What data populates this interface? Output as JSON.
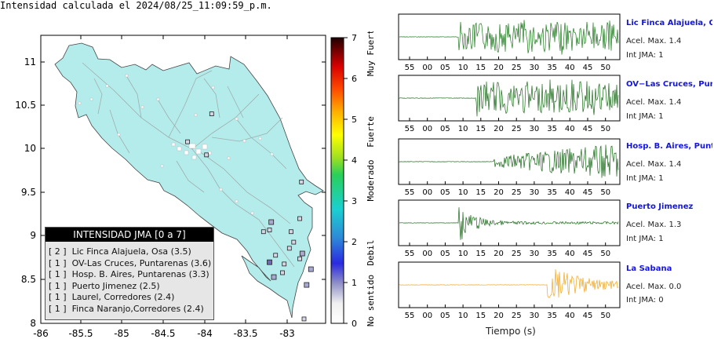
{
  "map": {
    "title": "Intensidad calculada el 2024/08/25_11:09:59_p.m.",
    "x_ticks": [
      "-86",
      "-85.5",
      "-85",
      "-84.5",
      "-84",
      "-83.5",
      "-83"
    ],
    "y_ticks": [
      "11",
      "10.5",
      "10",
      "9.5",
      "9",
      "8.5",
      "8"
    ],
    "land_color": "#b4ecec",
    "xlim": [
      -86,
      -82.7
    ],
    "ylim": [
      8,
      11.3
    ]
  },
  "colorbar": {
    "ticks": [
      "7",
      "6",
      "5",
      "4",
      "3",
      "2",
      "1",
      "0"
    ],
    "labels": [
      "Muy Fuerte",
      "Fuerte",
      "Moderado",
      "Debil",
      "No sentido"
    ]
  },
  "legend": {
    "header": "INTENSIDAD JMA [0 a 7]",
    "items": [
      "[ 2 ]  Lic Finca Alajuela, Osa (3.5)",
      "[ 1 ]  OV-Las Cruces, Puntarenas (3.6)",
      "[ 1 ]  Hosp. B. Aires, Puntarenas (3.3)",
      "[ 1 ]  Puerto Jimenez (2.5)",
      "[ 1 ]  Laurel, Corredores (2.4)",
      "[ 1 ]  Finca Naranjo,Corredores (2.4)"
    ]
  },
  "chart_data": [
    {
      "type": "scatter",
      "title": "Intensidad calculada el 2024/08/25_11:09:59_p.m.",
      "xlabel": "",
      "ylabel": "",
      "xlim": [
        -86,
        -82.7
      ],
      "ylim": [
        8,
        11.3
      ],
      "series": [
        {
          "name": "Lic Finca Alajuela, Osa",
          "intensity": 2,
          "x": [
            -83.35
          ],
          "y": [
            8.7
          ]
        },
        {
          "name": "OV-Las Cruces, Puntarenas",
          "intensity": 1,
          "x": [
            -82.97
          ],
          "y": [
            8.8
          ]
        },
        {
          "name": "Hosp. B. Aires, Puntarenas",
          "intensity": 1,
          "x": [
            -83.33
          ],
          "y": [
            9.16
          ]
        },
        {
          "name": "Puerto Jimenez",
          "intensity": 1,
          "x": [
            -83.3
          ],
          "y": [
            8.53
          ]
        },
        {
          "name": "Laurel, Corredores",
          "intensity": 1,
          "x": [
            -82.92
          ],
          "y": [
            8.44
          ]
        },
        {
          "name": "Finca Naranjo,Corredores",
          "intensity": 1,
          "x": [
            -82.87
          ],
          "y": [
            8.62
          ]
        }
      ]
    },
    {
      "type": "line",
      "xlabel": "Tiempo (s)",
      "x_ticks": [
        "55",
        "00",
        "05",
        "10",
        "15",
        "20",
        "25",
        "30",
        "35",
        "40",
        "45",
        "50"
      ],
      "series": [
        {
          "name": "Lic Finca Alajuela, Osa",
          "acel_max": 1.4,
          "int_jma": 1,
          "onset_tick": "10",
          "color": "#1a7a1a"
        },
        {
          "name": "OV-Las Cruces, Puntarenas",
          "acel_max": 1.4,
          "int_jma": 1,
          "onset_tick": "15",
          "color": "#1a6a1a"
        },
        {
          "name": "Hosp. B. Aires, Puntarenas",
          "acel_max": 1.4,
          "int_jma": 1,
          "onset_tick": "20",
          "color": "#1a6a1a"
        },
        {
          "name": "Puerto Jimenez",
          "acel_max": 1.3,
          "int_jma": 1,
          "onset_tick": "10",
          "color": "#1a6a1a"
        },
        {
          "name": "La Sabana",
          "acel_max": 0.0,
          "int_jma": 0,
          "onset_tick": "35",
          "color": "#f2a51c"
        }
      ]
    }
  ],
  "traces": {
    "xlabel": "Tiempo (s)",
    "acel_prefix": "Acel. Max. ",
    "int_prefix": "Int JMA: ",
    "stations": [
      {
        "name": "Lic Finca Alajuela, Osa",
        "acel": "1.4",
        "int": "1",
        "ticks": [
          "55",
          "00",
          "05",
          "10",
          "15",
          "20",
          "25",
          "30",
          "35",
          "40",
          "45",
          "50"
        ]
      },
      {
        "name": "OV−Las Cruces, Puntar",
        "acel": "1.4",
        "int": "1",
        "ticks": [
          "55",
          "00",
          "05",
          "10",
          "15",
          "20",
          "25",
          "30",
          "35",
          "40",
          "45",
          "50"
        ]
      },
      {
        "name": "Hosp. B. Aires, Puntare",
        "acel": "1.4",
        "int": "1",
        "ticks": [
          "55",
          "00",
          "05",
          "10",
          "15",
          "20",
          "25",
          "30",
          "35",
          "40",
          "45",
          "50"
        ]
      },
      {
        "name": "Puerto Jimenez",
        "acel": "1.3",
        "int": "1",
        "ticks": [
          "55",
          "00",
          "05",
          "10",
          "15",
          "20",
          "25",
          "30",
          "35",
          "40",
          "45",
          "50"
        ]
      },
      {
        "name": "La Sabana",
        "acel": "0.0",
        "int": "0",
        "ticks": [
          "55",
          "00",
          "05",
          "10",
          "15",
          "20",
          "25",
          "30",
          "35",
          "40",
          "45",
          "50"
        ]
      }
    ]
  }
}
